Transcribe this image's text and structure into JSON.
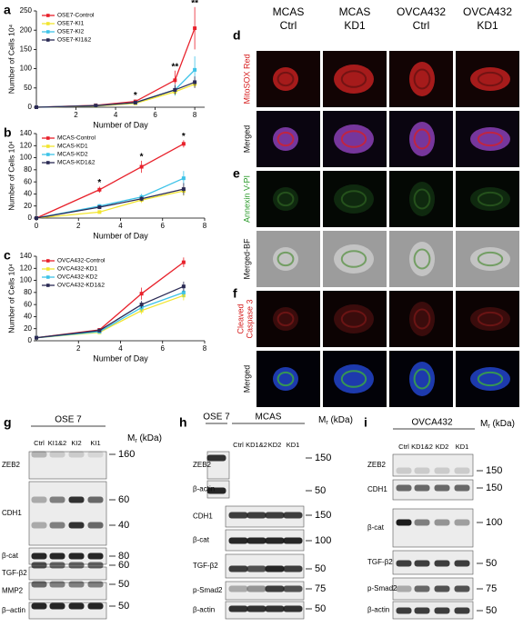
{
  "chart_data": [
    {
      "type": "line",
      "label": "a",
      "x_label": "Number of Day",
      "y_label": "Number of Cells 10⁴",
      "legend": "upper left",
      "x": [
        0,
        3,
        5,
        7,
        8
      ],
      "xlim": [
        0,
        8.5
      ],
      "xticks": [
        2,
        4,
        6,
        8
      ],
      "ylim": [
        0,
        250
      ],
      "yticks": [
        0,
        50,
        100,
        150,
        200,
        250
      ],
      "series": [
        {
          "name": "OSE7-Control",
          "color": "#e8212b",
          "values": [
            0,
            5,
            15,
            70,
            205
          ],
          "errors": [
            0,
            2,
            5,
            25,
            55
          ]
        },
        {
          "name": "OSE7-KI1",
          "color": "#f2e530",
          "values": [
            0,
            3,
            10,
            40,
            60
          ],
          "errors": [
            0,
            1,
            3,
            10,
            10
          ]
        },
        {
          "name": "OSE7-KI2",
          "color": "#3ec3e8",
          "values": [
            0,
            4,
            12,
            45,
            97
          ],
          "errors": [
            0,
            1,
            3,
            15,
            35
          ]
        },
        {
          "name": "OSE7-KI1&2",
          "color": "#2b2b55",
          "values": [
            0,
            4,
            12,
            45,
            65
          ],
          "errors": [
            0,
            1,
            3,
            12,
            15
          ]
        }
      ],
      "annotations": [
        {
          "x": 5,
          "text": "*"
        },
        {
          "x": 7,
          "text": "**"
        },
        {
          "x": 8,
          "text": "**"
        }
      ]
    },
    {
      "type": "line",
      "label": "b",
      "x_label": "Number of Day",
      "y_label": "Number of Cells 10⁴",
      "legend": "upper left",
      "x": [
        0,
        3,
        5,
        7
      ],
      "xlim": [
        0,
        8
      ],
      "xticks": [
        0,
        2,
        4,
        6,
        8
      ],
      "ylim": [
        0,
        140
      ],
      "yticks": [
        0,
        20,
        40,
        60,
        80,
        100,
        120,
        140
      ],
      "series": [
        {
          "name": "MCAS-Control",
          "color": "#e8212b",
          "values": [
            0,
            47,
            85,
            123
          ],
          "errors": [
            0,
            5,
            10,
            6
          ]
        },
        {
          "name": "MCAS-KD1",
          "color": "#f2e530",
          "values": [
            0,
            10,
            30,
            45
          ],
          "errors": [
            0,
            2,
            5,
            8
          ]
        },
        {
          "name": "MCAS-KD2",
          "color": "#3ec3e8",
          "values": [
            0,
            20,
            35,
            66
          ],
          "errors": [
            0,
            3,
            5,
            12
          ]
        },
        {
          "name": "MCAS-KD1&2",
          "color": "#2b2b55",
          "values": [
            0,
            18,
            32,
            48
          ],
          "errors": [
            0,
            3,
            4,
            10
          ]
        }
      ],
      "annotations": [
        {
          "x": 3,
          "text": "*"
        },
        {
          "x": 5,
          "text": "*"
        },
        {
          "x": 7,
          "text": "*"
        }
      ]
    },
    {
      "type": "line",
      "label": "c",
      "x_label": "Number of Day",
      "y_label": "Number of Cells 10⁴",
      "legend": "upper left",
      "x": [
        0,
        3,
        5,
        7
      ],
      "xlim": [
        0,
        8
      ],
      "xticks": [
        2,
        4,
        6,
        8
      ],
      "ylim": [
        0,
        140
      ],
      "yticks": [
        0,
        20,
        40,
        60,
        80,
        100,
        120,
        140
      ],
      "series": [
        {
          "name": "OVCA432-Control",
          "color": "#e8212b",
          "values": [
            5,
            18,
            78,
            130
          ],
          "errors": [
            0,
            2,
            10,
            8
          ]
        },
        {
          "name": "OVCA432-KD1",
          "color": "#f2e530",
          "values": [
            5,
            14,
            50,
            75
          ],
          "errors": [
            0,
            2,
            6,
            8
          ]
        },
        {
          "name": "OVCA432-KD2",
          "color": "#3ec3e8",
          "values": [
            5,
            15,
            55,
            80
          ],
          "errors": [
            0,
            2,
            6,
            8
          ]
        },
        {
          "name": "OVCA432-KD1&2",
          "color": "#2b2b55",
          "values": [
            5,
            17,
            60,
            90
          ],
          "errors": [
            0,
            2,
            6,
            8
          ]
        }
      ],
      "annotations": []
    }
  ],
  "microscopy": {
    "columns": [
      [
        "MCAS",
        "Ctrl"
      ],
      [
        "MCAS",
        "KD1"
      ],
      [
        "OVCA432",
        "Ctrl"
      ],
      [
        "OVCA432",
        "KD1"
      ]
    ],
    "groups": [
      {
        "label": "d",
        "rows": [
          [
            "MitoSOX Red"
          ],
          [
            "Merged"
          ]
        ]
      },
      {
        "label": "e",
        "rows": [
          [
            "Annexin V-PI"
          ],
          [
            "Merged-BF"
          ]
        ]
      },
      {
        "label": "f",
        "rows": [
          [
            "Cleaved",
            "Caspase 3"
          ],
          [
            "Merged"
          ]
        ]
      }
    ]
  },
  "mr": {
    "symbol": "M",
    "sub": "r",
    "unit": " (kDa)"
  },
  "blots": [
    {
      "label": "g",
      "groups": [
        {
          "name": "OSE 7",
          "lanes": [
            "Ctrl",
            "KI1&2",
            "KI2",
            "KI1"
          ]
        }
      ],
      "rows": [
        {
          "name": "ZEB2",
          "markers": [
            160
          ]
        },
        {
          "name": "CDH1",
          "markers": [
            60,
            40
          ]
        },
        {
          "name": "β-cat",
          "markers": [
            80
          ]
        },
        {
          "name": "TGF-β2",
          "markers": [
            60
          ]
        },
        {
          "name": "MMP2",
          "markers": [
            50
          ]
        },
        {
          "name": "β–actin",
          "markers": [
            50
          ]
        }
      ]
    },
    {
      "label": "h",
      "groups": [
        {
          "name": "OSE 7"
        },
        {
          "name": "MCAS",
          "lanes": [
            "Ctrl",
            "KD1&2",
            "KD2",
            "KD1"
          ]
        }
      ],
      "rows": [
        {
          "name": "ZEB2",
          "markers": [
            150
          ]
        },
        {
          "name": "β-actin",
          "markers": [
            50
          ]
        },
        {
          "name": "CDH1",
          "markers": [
            150
          ]
        },
        {
          "name": "β-cat",
          "markers": [
            100
          ]
        },
        {
          "name": "TGF-β2",
          "markers": [
            50
          ]
        },
        {
          "name": "p-Smad2",
          "markers": [
            75
          ]
        },
        {
          "name": "β-actin",
          "markers": [
            50
          ]
        }
      ]
    },
    {
      "label": "i",
      "groups": [
        {
          "name": "OVCA432",
          "lanes": [
            "Ctrl",
            "KD1&2",
            "KD2",
            "KD1"
          ]
        }
      ],
      "rows": [
        {
          "name": "ZEB2",
          "markers": [
            150
          ]
        },
        {
          "name": "CDH1",
          "markers": [
            150
          ]
        },
        {
          "name": "β-cat",
          "markers": [
            100
          ]
        },
        {
          "name": "TGF-β2",
          "markers": [
            50
          ]
        },
        {
          "name": "p-Smad2",
          "markers": [
            75
          ]
        },
        {
          "name": "β-actin",
          "markers": [
            50
          ]
        }
      ]
    }
  ]
}
